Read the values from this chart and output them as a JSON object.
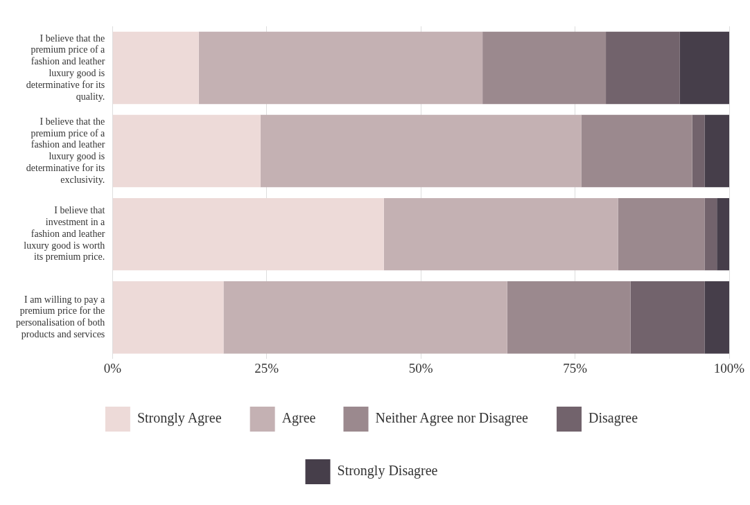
{
  "chart_data": {
    "type": "bar",
    "orientation": "horizontal",
    "stacked": true,
    "categories": [
      "I believe that the premium price of a fashion and leather luxury good is determinative for its quality.",
      "I believe that the premium price of a fashion and leather luxury good is determinative for its exclusivity.",
      "I believe that investment in a fashion and leather luxury good is worth its premium price.",
      "I am willing to pay a premium price for the personalisation of both products and services"
    ],
    "series": [
      {
        "name": "Strongly Agree",
        "color": "#eddad8",
        "values": [
          14,
          24,
          44,
          18
        ]
      },
      {
        "name": "Agree",
        "color": "#c4b1b3",
        "values": [
          46,
          52,
          38,
          46
        ]
      },
      {
        "name": "Neither Agree nor Disagree",
        "color": "#9b898e",
        "values": [
          20,
          18,
          14,
          20
        ]
      },
      {
        "name": "Disagree",
        "color": "#72636c",
        "values": [
          12,
          2,
          2,
          12
        ]
      },
      {
        "name": "Strongly Disagree",
        "color": "#463e4a",
        "values": [
          8,
          4,
          2,
          4
        ]
      }
    ],
    "xlim": [
      0,
      100
    ],
    "xticks": [
      {
        "value": 0,
        "label": "0%"
      },
      {
        "value": 25,
        "label": "25%"
      },
      {
        "value": 50,
        "label": "50%"
      },
      {
        "value": 75,
        "label": "75%"
      },
      {
        "value": 100,
        "label": "100%"
      }
    ],
    "grid": "x",
    "legend": "bottom"
  }
}
